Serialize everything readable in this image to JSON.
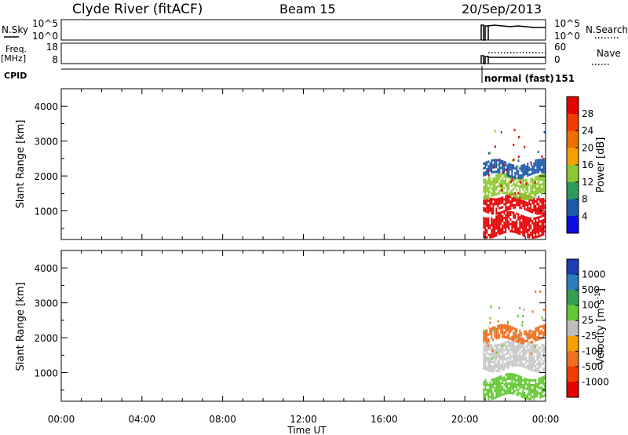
{
  "header": {
    "station": "Clyde River (fitACF)",
    "beam": "Beam 15",
    "date": "20/Sep/2013"
  },
  "panels": {
    "nsky": {
      "left_label": "N.Sky",
      "right_label": "N.Search",
      "left_ticks": [
        "10^5",
        "10^0"
      ],
      "right_ticks": [
        "10^5",
        "10^0"
      ]
    },
    "freq": {
      "left_label_1": "Freq.",
      "left_label_2": "[MHz]",
      "right_label": "Nave",
      "left_ticks": [
        "18",
        "8"
      ],
      "right_ticks": [
        "60",
        "0"
      ]
    },
    "cpid": {
      "left_label": "CPID",
      "mode": "normal (fast)",
      "id": "151"
    }
  },
  "chart_data": [
    {
      "type": "heatmap",
      "name": "power",
      "ylabel": "Slant Range [km]",
      "yticks": [
        "4000",
        "3000",
        "2000",
        "1000"
      ],
      "ylim": [
        180,
        4500
      ],
      "xlim_hours": [
        0,
        24
      ],
      "colorbar": {
        "label": "Power [dB]",
        "ticks": [
          "28",
          "24",
          "20",
          "16",
          "12",
          "8",
          "4"
        ],
        "colors": [
          "#e60000",
          "#f03a00",
          "#f06e00",
          "#f5a000",
          "#8cc832",
          "#2d9b5a",
          "#1e5aaa",
          "#0a0ae6"
        ]
      },
      "data_extent_hours": [
        20.9,
        24
      ],
      "bands_km": [
        {
          "range": [
            1000,
            1450
          ],
          "level": "high",
          "color": "#e60000"
        },
        {
          "range": [
            300,
            900
          ],
          "level": "high",
          "color": "#e60000"
        },
        {
          "range": [
            1450,
            2000
          ],
          "level": "medium",
          "color": "#8cc832"
        },
        {
          "range": [
            2000,
            2400
          ],
          "level": "low",
          "color": "#1e5aaa"
        }
      ]
    },
    {
      "type": "heatmap",
      "name": "velocity",
      "ylabel": "Slant Range [km]",
      "yticks": [
        "4000",
        "3000",
        "2000",
        "1000"
      ],
      "ylim": [
        180,
        4500
      ],
      "xlim_hours": [
        0,
        24
      ],
      "xticks": [
        "00:00",
        "04:00",
        "08:00",
        "12:00",
        "16:00",
        "20:00",
        "00:00"
      ],
      "xlabel": "Time UT",
      "colorbar": {
        "label": "Velocity [m s",
        "label_sup": "-1",
        "label_end": "]",
        "ticks": [
          "1000",
          "500",
          "100",
          "25",
          "-25",
          "-100",
          "-500",
          "-1000"
        ],
        "colors": [
          "#1e3cb4",
          "#2d7dbe",
          "#32a050",
          "#64c832",
          "#bebebe",
          "#f5a000",
          "#f06e1e",
          "#f03c00",
          "#e60000"
        ]
      },
      "data_extent_hours": [
        20.9,
        24
      ],
      "bands_km": [
        {
          "range": [
            1100,
            1900
          ],
          "level": "near-zero",
          "color": "#c8c8c8"
        },
        {
          "range": [
            350,
            900
          ],
          "level": "mixed",
          "color": "#64c832"
        },
        {
          "range": [
            1950,
            2300
          ],
          "level": "negative",
          "color": "#f06e1e"
        }
      ]
    }
  ]
}
